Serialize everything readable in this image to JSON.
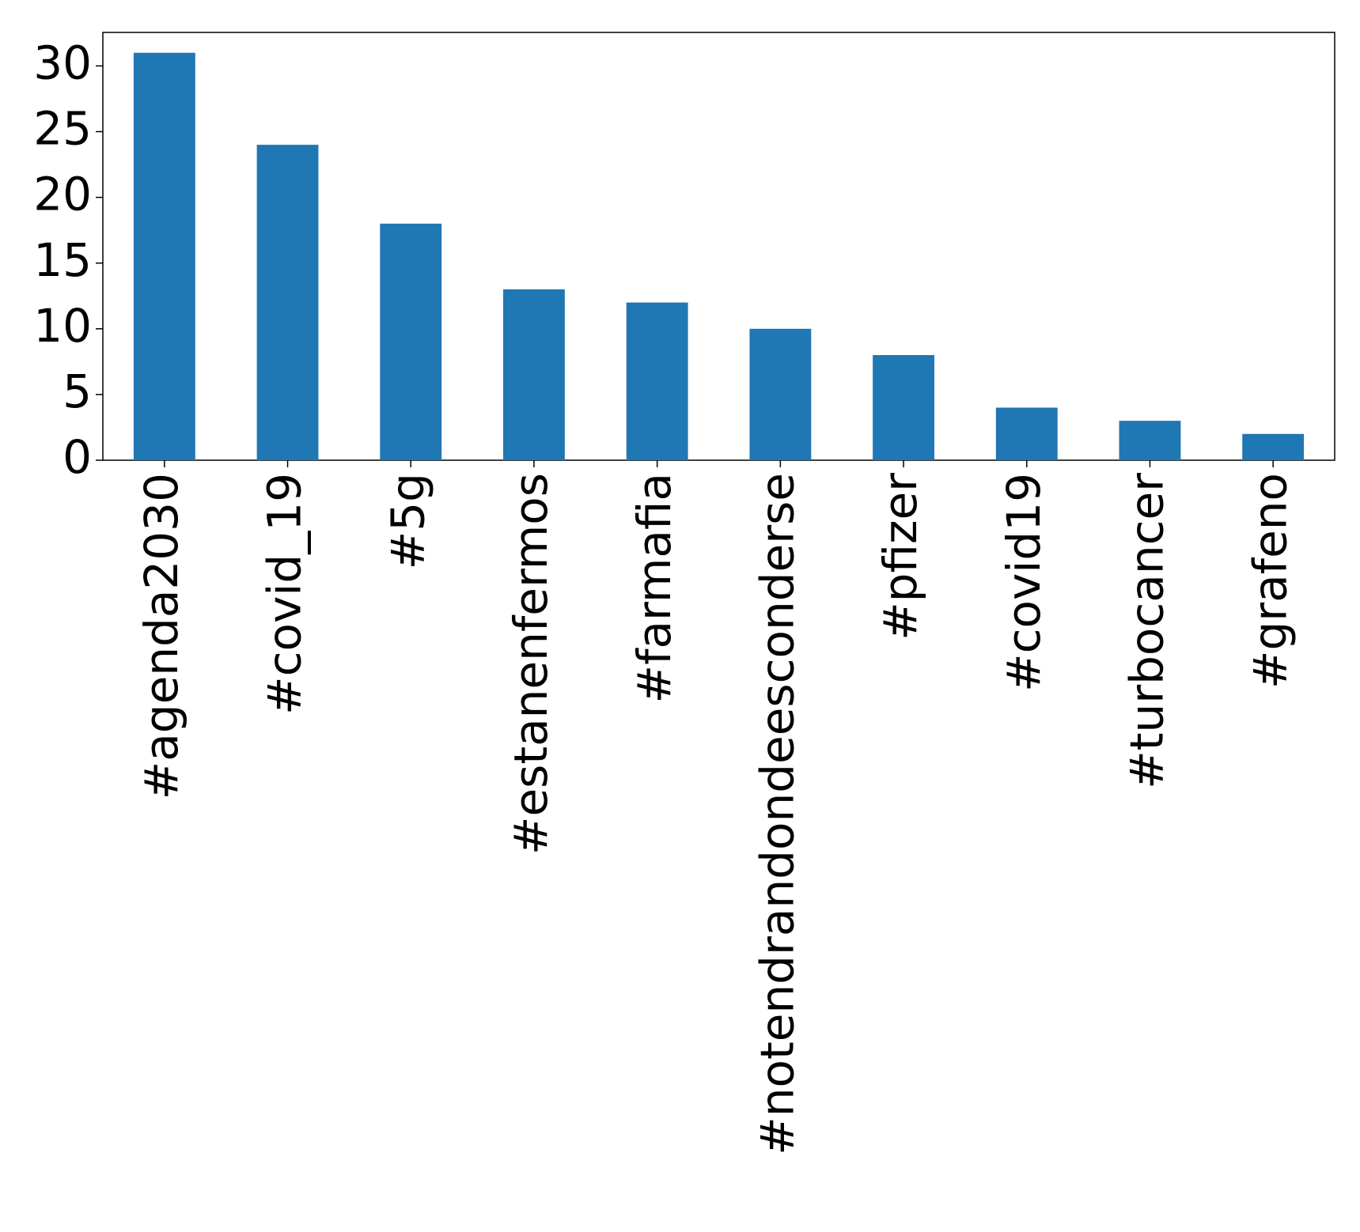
{
  "chart_data": {
    "type": "bar",
    "categories": [
      "#agenda2030",
      "#covid_19",
      "#5g",
      "#estanenfermos",
      "#farmafia",
      "#notendrandondeesconderse",
      "#pfizer",
      "#covid19",
      "#turbocancer",
      "#grafeno"
    ],
    "values": [
      31,
      24,
      18,
      13,
      12,
      10,
      8,
      4,
      3,
      2
    ],
    "color": "#1f77b4",
    "ylim": [
      0,
      32.55
    ],
    "yticks": [
      0,
      5,
      10,
      15,
      20,
      25,
      30
    ],
    "grid": false
  }
}
